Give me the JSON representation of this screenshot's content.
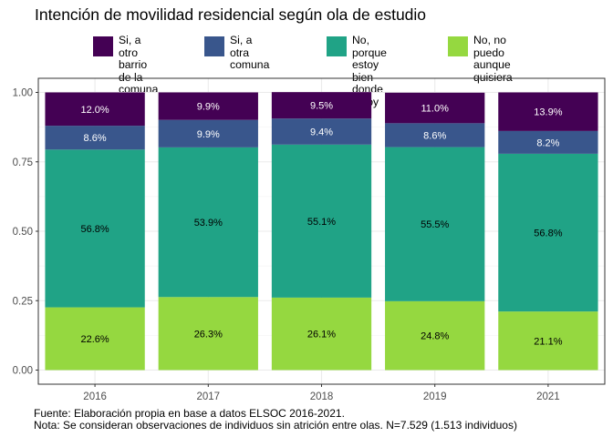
{
  "chart_data": {
    "type": "bar",
    "stacked": true,
    "title": "Intención de movilidad residencial según ola de estudio",
    "xlabel": "",
    "ylabel": "",
    "categories": [
      "2016",
      "2017",
      "2018",
      "2019",
      "2021"
    ],
    "ylim": [
      0,
      1
    ],
    "yticks": [
      "0.00",
      "0.25",
      "0.50",
      "0.75",
      "1.00"
    ],
    "grid": true,
    "legend_position": "top",
    "series": [
      {
        "name": "No, no puedo\naunque quisiera",
        "color": "#95d840",
        "values": [
          0.226,
          0.263,
          0.261,
          0.248,
          0.211
        ],
        "labels": [
          "22.6%",
          "26.3%",
          "26.1%",
          "24.8%",
          "21.1%"
        ],
        "label_color": "#000000"
      },
      {
        "name": "No, porque estoy\nbien donde estoy",
        "color": "#20a386",
        "values": [
          0.568,
          0.539,
          0.551,
          0.555,
          0.568
        ],
        "labels": [
          "56.8%",
          "53.9%",
          "55.1%",
          "55.5%",
          "56.8%"
        ],
        "label_color": "#000000"
      },
      {
        "name": "Si, a otra comuna",
        "color": "#39568c",
        "values": [
          0.086,
          0.099,
          0.094,
          0.086,
          0.082
        ],
        "labels": [
          "8.6%",
          "9.9%",
          "9.4%",
          "8.6%",
          "8.2%"
        ],
        "label_color": "#ffffff"
      },
      {
        "name": "Si, a otro barrio\nde la comuna",
        "color": "#440154",
        "values": [
          0.12,
          0.099,
          0.095,
          0.11,
          0.139
        ],
        "labels": [
          "12.0%",
          "9.9%",
          "9.5%",
          "11.0%",
          "13.9%"
        ],
        "label_color": "#ffffff"
      }
    ],
    "legend_order": [
      3,
      2,
      1,
      0
    ]
  },
  "caption": {
    "line1": "Fuente: Elaboración propia en base a datos ELSOC 2016-2021.",
    "line2": "Nota: Se consideran observaciones de individuos sin atrición entre olas. N=7.529 (1.513 individuos)"
  }
}
